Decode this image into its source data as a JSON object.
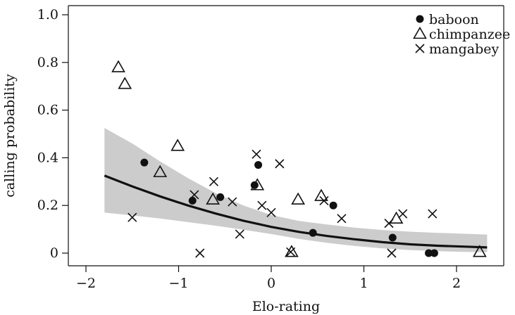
{
  "chart_data": {
    "type": "scatter",
    "xlabel": "Elo-rating",
    "ylabel": "calling probability",
    "xlim": [
      -2.2,
      2.6
    ],
    "ylim": [
      0,
      1.0
    ],
    "x_ticks": [
      -2,
      -1,
      0,
      1,
      2
    ],
    "x_tick_labels": [
      "−2",
      "−1",
      "0",
      "1",
      "2"
    ],
    "y_ticks": [
      0,
      0.2,
      0.4,
      0.6,
      0.8,
      1.0
    ],
    "y_tick_labels": [
      "0",
      "0.2",
      "0.4",
      "0.6",
      "0.8",
      "1.0"
    ],
    "grid": false,
    "legend_position": "top-right",
    "colors": {
      "points": "#111111",
      "fit_line": "#111111",
      "confidence_band": "#cccccc"
    },
    "series": [
      {
        "name": "baboon",
        "marker": "filled-circle",
        "points": [
          {
            "x": -1.37,
            "y": 0.38
          },
          {
            "x": -0.85,
            "y": 0.22
          },
          {
            "x": -0.55,
            "y": 0.235
          },
          {
            "x": -0.18,
            "y": 0.285
          },
          {
            "x": -0.14,
            "y": 0.37
          },
          {
            "x": 0.45,
            "y": 0.085
          },
          {
            "x": 0.67,
            "y": 0.2
          },
          {
            "x": 1.31,
            "y": 0.065
          },
          {
            "x": 1.7,
            "y": 0.0
          },
          {
            "x": 1.76,
            "y": 0.0
          }
        ]
      },
      {
        "name": "chimpanzee",
        "marker": "open-triangle",
        "points": [
          {
            "x": -1.65,
            "y": 0.78
          },
          {
            "x": -1.58,
            "y": 0.71
          },
          {
            "x": -1.2,
            "y": 0.34
          },
          {
            "x": -1.01,
            "y": 0.45
          },
          {
            "x": -0.63,
            "y": 0.225
          },
          {
            "x": -0.15,
            "y": 0.285
          },
          {
            "x": 0.22,
            "y": 0.005
          },
          {
            "x": 0.29,
            "y": 0.225
          },
          {
            "x": 0.54,
            "y": 0.24
          },
          {
            "x": 1.35,
            "y": 0.145
          },
          {
            "x": 2.25,
            "y": 0.005
          }
        ]
      },
      {
        "name": "mangabey",
        "marker": "cross",
        "points": [
          {
            "x": -1.5,
            "y": 0.15
          },
          {
            "x": -0.83,
            "y": 0.245
          },
          {
            "x": -0.77,
            "y": 0.0
          },
          {
            "x": -0.62,
            "y": 0.3
          },
          {
            "x": -0.42,
            "y": 0.215
          },
          {
            "x": -0.34,
            "y": 0.08
          },
          {
            "x": -0.16,
            "y": 0.415
          },
          {
            "x": -0.1,
            "y": 0.2
          },
          {
            "x": 0.0,
            "y": 0.17
          },
          {
            "x": 0.09,
            "y": 0.375
          },
          {
            "x": 0.21,
            "y": 0.005
          },
          {
            "x": 0.57,
            "y": 0.22
          },
          {
            "x": 0.76,
            "y": 0.145
          },
          {
            "x": 1.27,
            "y": 0.125
          },
          {
            "x": 1.3,
            "y": 0.0
          },
          {
            "x": 1.42,
            "y": 0.165
          },
          {
            "x": 1.74,
            "y": 0.165
          }
        ]
      }
    ],
    "fit": {
      "type": "logistic",
      "x": [
        -1.8,
        -1.5,
        -1.2,
        -0.9,
        -0.6,
        -0.3,
        0.0,
        0.3,
        0.6,
        0.9,
        1.2,
        1.5,
        1.8,
        2.1,
        2.33
      ],
      "y": [
        0.325,
        0.28,
        0.238,
        0.2,
        0.166,
        0.136,
        0.11,
        0.089,
        0.072,
        0.058,
        0.046,
        0.037,
        0.031,
        0.027,
        0.024
      ],
      "lower": [
        0.17,
        0.158,
        0.145,
        0.13,
        0.115,
        0.098,
        0.08,
        0.06,
        0.043,
        0.03,
        0.02,
        0.013,
        0.008,
        0.005,
        0.004
      ],
      "upper": [
        0.525,
        0.46,
        0.385,
        0.315,
        0.252,
        0.2,
        0.16,
        0.135,
        0.12,
        0.107,
        0.097,
        0.09,
        0.085,
        0.081,
        0.078
      ]
    }
  }
}
